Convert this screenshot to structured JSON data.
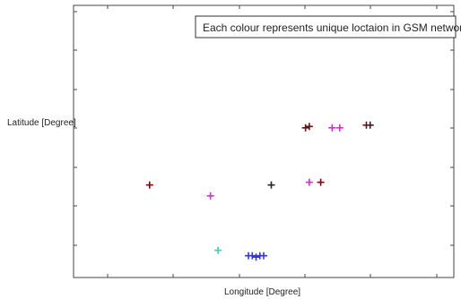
{
  "chart_data": {
    "type": "scatter",
    "legend_text": "Each colour represents unique loctaion in GSM network",
    "legend_position": "top-right",
    "xlabel": "Longitude [Degree]",
    "ylabel": "Latitude [Degree]",
    "xlim": [
      0,
      10
    ],
    "ylim": [
      0,
      10
    ],
    "grid": false,
    "tick_labels_visible": false,
    "marker": "+",
    "series": [
      {
        "color": "#8b0000",
        "points": [
          [
            2.0,
            3.4
          ],
          [
            6.5,
            3.5
          ]
        ]
      },
      {
        "color": "#cc33cc",
        "points": [
          [
            3.6,
            3.0
          ],
          [
            6.8,
            5.5
          ],
          [
            7.0,
            5.5
          ],
          [
            6.2,
            3.5
          ]
        ]
      },
      {
        "color": "#222222",
        "points": [
          [
            5.2,
            3.4
          ],
          [
            7.8,
            5.6
          ]
        ]
      },
      {
        "color": "#33cccc",
        "points": [
          [
            3.8,
            1.0
          ]
        ]
      },
      {
        "color": "#3333ee",
        "points": [
          [
            4.6,
            0.8
          ],
          [
            4.7,
            0.8
          ],
          [
            4.8,
            0.75
          ],
          [
            4.9,
            0.8
          ],
          [
            5.0,
            0.8
          ]
        ]
      },
      {
        "color": "#661111",
        "points": [
          [
            6.1,
            5.5
          ],
          [
            6.2,
            5.55
          ],
          [
            7.7,
            5.6
          ]
        ]
      }
    ]
  }
}
